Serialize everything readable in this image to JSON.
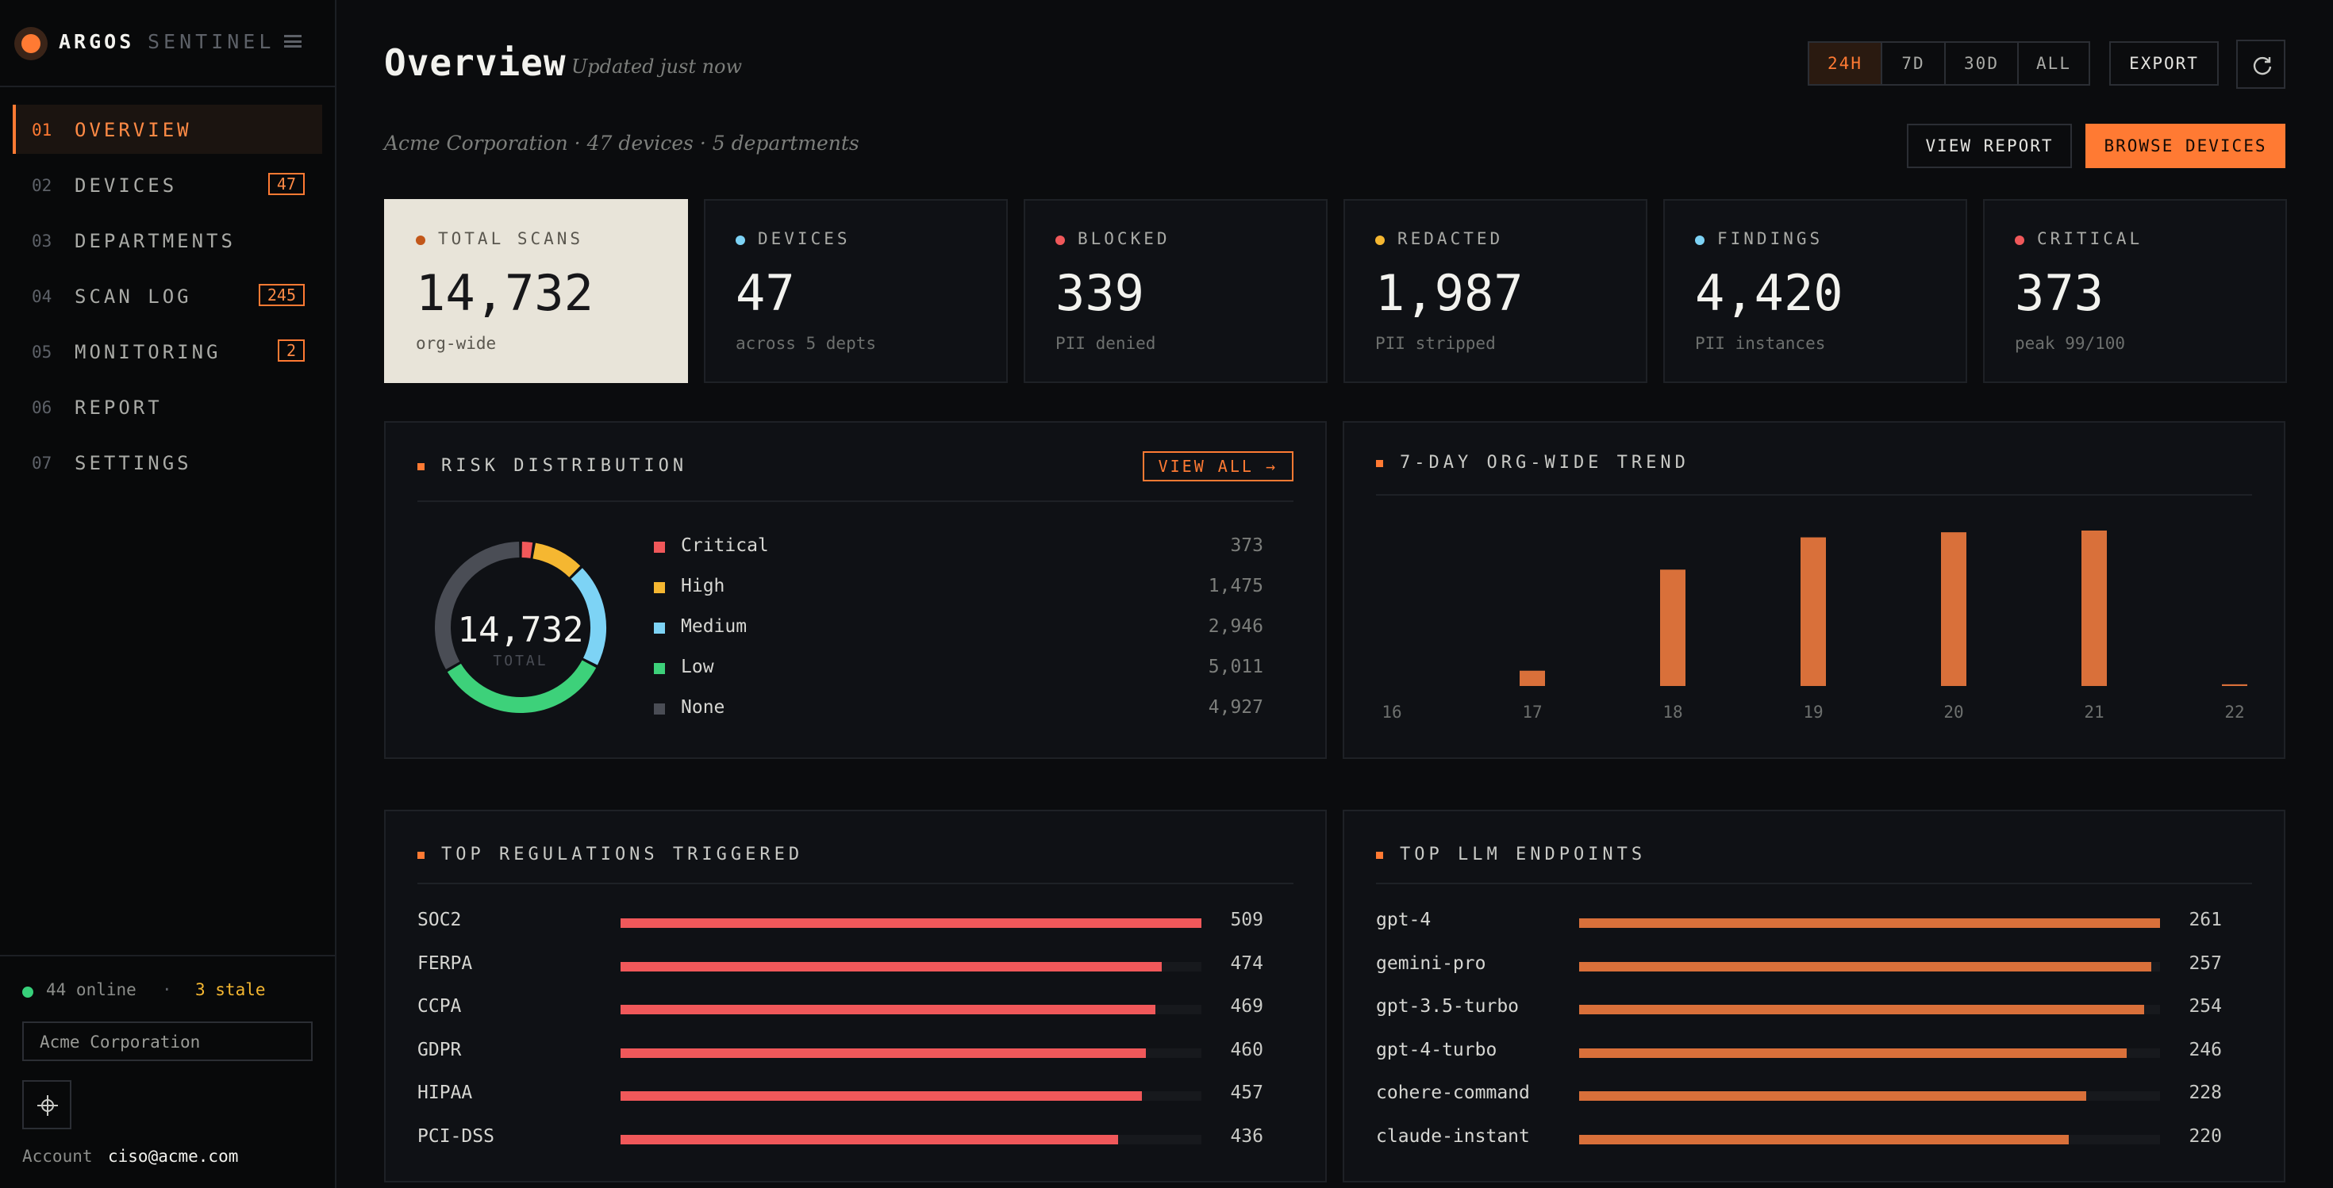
{
  "brand": {
    "name": "ARGOS",
    "product": "SENTINEL"
  },
  "nav": [
    {
      "num": "01",
      "label": "OVERVIEW",
      "badge": ""
    },
    {
      "num": "02",
      "label": "DEVICES",
      "badge": "47"
    },
    {
      "num": "03",
      "label": "DEPARTMENTS",
      "badge": ""
    },
    {
      "num": "04",
      "label": "SCAN LOG",
      "badge": "245"
    },
    {
      "num": "05",
      "label": "MONITORING",
      "badge": "2"
    },
    {
      "num": "06",
      "label": "REPORT",
      "badge": ""
    },
    {
      "num": "07",
      "label": "SETTINGS",
      "badge": ""
    }
  ],
  "status": {
    "online": "44 online",
    "separator": "·",
    "stale": "3 stale"
  },
  "org_selector": "Acme Corporation",
  "account": {
    "label": "Account",
    "email": "ciso@acme.com"
  },
  "header": {
    "title": "Overview",
    "updated": "Updated just now",
    "org_line": "Acme Corporation · 47 devices · 5 departments",
    "ranges": [
      "24H",
      "7D",
      "30D",
      "ALL"
    ],
    "active_range": "24H",
    "export_label": "EXPORT",
    "view_report_label": "VIEW REPORT",
    "browse_devices_label": "BROWSE DEVICES"
  },
  "stats": [
    {
      "label": "TOTAL SCANS",
      "value": "14,732",
      "sub": "org-wide",
      "color": "#c2571a"
    },
    {
      "label": "DEVICES",
      "value": "47",
      "sub": "across 5 depts",
      "color": "#7dd3f5"
    },
    {
      "label": "BLOCKED",
      "value": "339",
      "sub": "PII denied",
      "color": "#f0585a"
    },
    {
      "label": "REDACTED",
      "value": "1,987",
      "sub": "PII stripped",
      "color": "#f5b731"
    },
    {
      "label": "FINDINGS",
      "value": "4,420",
      "sub": "PII instances",
      "color": "#7dd3f5"
    },
    {
      "label": "CRITICAL",
      "value": "373",
      "sub": "peak 99/100",
      "color": "#f0585a"
    }
  ],
  "risk": {
    "title": "RISK DISTRIBUTION",
    "view_all": "VIEW ALL →",
    "total": "14,732",
    "total_label": "TOTAL",
    "items": [
      {
        "label": "Critical",
        "value": "373",
        "color": "#f0585a"
      },
      {
        "label": "High",
        "value": "1,475",
        "color": "#f5b731"
      },
      {
        "label": "Medium",
        "value": "2,946",
        "color": "#7dd3f5"
      },
      {
        "label": "Low",
        "value": "5,011",
        "color": "#3dd17a"
      },
      {
        "label": "None",
        "value": "4,927",
        "color": "#4a4d55"
      }
    ]
  },
  "trend": {
    "title": "7-DAY ORG-WIDE TREND"
  },
  "regulations": {
    "title": "TOP REGULATIONS TRIGGERED",
    "color": "#f0585a",
    "items": [
      {
        "label": "SOC2",
        "value": "509"
      },
      {
        "label": "FERPA",
        "value": "474"
      },
      {
        "label": "CCPA",
        "value": "469"
      },
      {
        "label": "GDPR",
        "value": "460"
      },
      {
        "label": "HIPAA",
        "value": "457"
      },
      {
        "label": "PCI-DSS",
        "value": "436"
      }
    ]
  },
  "endpoints": {
    "title": "TOP LLM ENDPOINTS",
    "color": "#d9703a",
    "items": [
      {
        "label": "gpt-4",
        "value": "261"
      },
      {
        "label": "gemini-pro",
        "value": "257"
      },
      {
        "label": "gpt-3.5-turbo",
        "value": "254"
      },
      {
        "label": "gpt-4-turbo",
        "value": "246"
      },
      {
        "label": "cohere-command",
        "value": "228"
      },
      {
        "label": "claude-instant",
        "value": "220"
      }
    ]
  },
  "chart_data": [
    {
      "type": "pie",
      "categories": [
        "Critical",
        "High",
        "Medium",
        "Low",
        "None"
      ],
      "values": [
        373,
        1475,
        2946,
        5011,
        4927
      ]
    },
    {
      "type": "bar",
      "title": "7-DAY ORG-WIDE TREND",
      "categories": [
        "16",
        "17",
        "18",
        "19",
        "20",
        "21",
        "22"
      ],
      "values": [
        0,
        180,
        1370,
        1750,
        1810,
        1830,
        20
      ],
      "color": "#d9703a"
    },
    {
      "type": "bar",
      "title": "TOP REGULATIONS TRIGGERED",
      "categories": [
        "SOC2",
        "FERPA",
        "CCPA",
        "GDPR",
        "HIPAA",
        "PCI-DSS"
      ],
      "values": [
        509,
        474,
        469,
        460,
        457,
        436
      ]
    },
    {
      "type": "bar",
      "title": "TOP LLM ENDPOINTS",
      "categories": [
        "gpt-4",
        "gemini-pro",
        "gpt-3.5-turbo",
        "gpt-4-turbo",
        "cohere-command",
        "claude-instant"
      ],
      "values": [
        261,
        257,
        254,
        246,
        228,
        220
      ]
    }
  ]
}
